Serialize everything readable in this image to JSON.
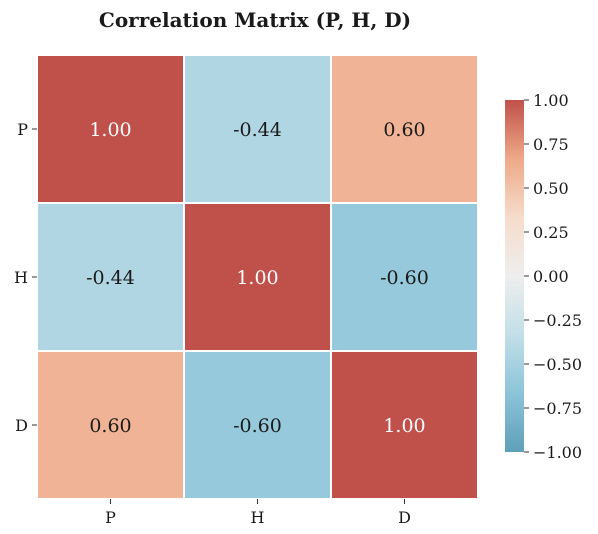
{
  "chart_data": {
    "type": "heatmap",
    "title": "Correlation Matrix (P, H, D)",
    "x_categories": [
      "P",
      "H",
      "D"
    ],
    "y_categories": [
      "P",
      "H",
      "D"
    ],
    "values": [
      [
        1.0,
        -0.44,
        0.6
      ],
      [
        -0.44,
        1.0,
        -0.6
      ],
      [
        0.6,
        -0.6,
        1.0
      ]
    ],
    "cell_labels": [
      [
        "1.00",
        "-0.44",
        "0.60"
      ],
      [
        "-0.44",
        "1.00",
        "-0.60"
      ],
      [
        "0.60",
        "-0.60",
        "1.00"
      ]
    ],
    "colorbar": {
      "range": [
        -1.0,
        1.0
      ],
      "ticks": [
        1.0,
        0.75,
        0.5,
        0.25,
        0.0,
        -0.25,
        -0.5,
        -0.75,
        -1.0
      ],
      "tick_labels": [
        "1.00",
        "0.75",
        "0.50",
        "0.25",
        "0.00",
        "−0.25",
        "−0.50",
        "−0.75",
        "−1.00"
      ],
      "colormap": [
        "#5e9fb8",
        "#8cc4d9",
        "#c2dfe8",
        "#eeeeee",
        "#f6dccb",
        "#eea987",
        "#c0504a"
      ]
    },
    "text_colors": {
      "dark": "#1a1a1a",
      "light": "#ffffff"
    },
    "gridlines": false,
    "legend": "right"
  }
}
